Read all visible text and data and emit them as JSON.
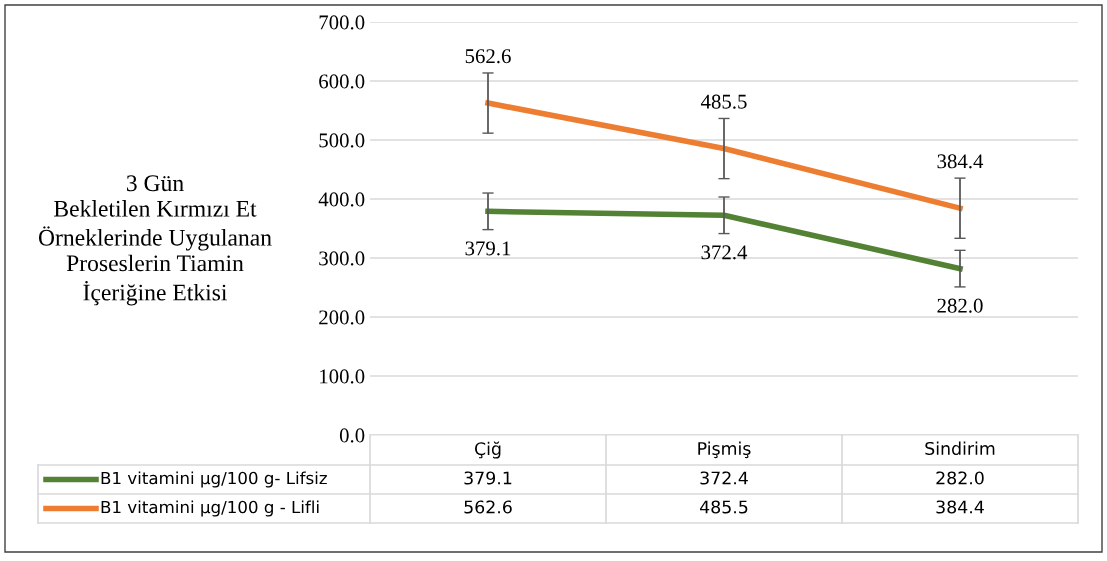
{
  "chart_data": {
    "type": "line",
    "title": "3 Gün\nBekletilen Kırmızı Et\nÖrneklerinde Uygulanan\nProseslerin Tiamin\nİçeriğine Etkisi",
    "categories": [
      "Çiğ",
      "Pişmiş",
      "Sindirim"
    ],
    "series": [
      {
        "name": "B1 vitamini µg/100 g- Lifsiz",
        "color": "#548235",
        "values": [
          379.1,
          372.4,
          282.0
        ],
        "errors": [
          31,
          31,
          31
        ],
        "value_labels": [
          "379.1",
          "372.4",
          "282.0"
        ]
      },
      {
        "name": "B1 vitamini µg/100 g - Lifli",
        "color": "#ed7d31",
        "values": [
          562.6,
          485.5,
          384.4
        ],
        "errors": [
          51,
          51,
          51
        ],
        "value_labels": [
          "562.6",
          "485.5",
          "384.4"
        ]
      }
    ],
    "ylim": [
      0,
      700
    ],
    "yticks": [
      {
        "value": 0,
        "label": "0.0"
      },
      {
        "value": 100,
        "label": "100.0"
      },
      {
        "value": 200,
        "label": "200.0"
      },
      {
        "value": 300,
        "label": "300.0"
      },
      {
        "value": 400,
        "label": "400.0"
      },
      {
        "value": 500,
        "label": "500.0"
      },
      {
        "value": 600,
        "label": "600.0"
      },
      {
        "value": 700,
        "label": "700.0"
      }
    ],
    "grid": "y",
    "legend": "bottom",
    "marker": "none",
    "line_style": "solid"
  }
}
